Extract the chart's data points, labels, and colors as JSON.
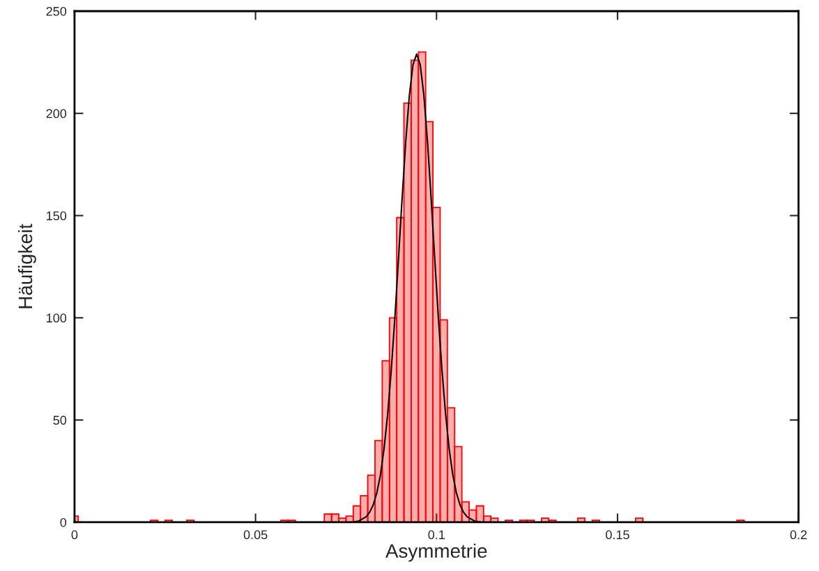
{
  "chart_data": {
    "type": "histogram",
    "xlabel": "Asymmetrie",
    "ylabel": "Häufigkeit",
    "bins": [
      0,
      0.001,
      0.003,
      0.005,
      0.007,
      0.009,
      0.011,
      0.013,
      0.015,
      0.017,
      0.019,
      0.021,
      0.023,
      0.025,
      0.027,
      0.029,
      0.031,
      0.033,
      0.035,
      0.037,
      0.039,
      0.041,
      0.043,
      0.045,
      0.047,
      0.049,
      0.051,
      0.053,
      0.055,
      0.057,
      0.059,
      0.061,
      0.063,
      0.065,
      0.067,
      0.069,
      0.071,
      0.073,
      0.075,
      0.077,
      0.079,
      0.081,
      0.083,
      0.085,
      0.087,
      0.089,
      0.091,
      0.093,
      0.095,
      0.097,
      0.099,
      0.101,
      0.103,
      0.105,
      0.107,
      0.109,
      0.111,
      0.113,
      0.115,
      0.117,
      0.119,
      0.121,
      0.123,
      0.125,
      0.127,
      0.129,
      0.131,
      0.133,
      0.135,
      0.137,
      0.139,
      0.141,
      0.143,
      0.145,
      0.147,
      0.149,
      0.151,
      0.153,
      0.155,
      0.157,
      0.159,
      0.161,
      0.163,
      0.165,
      0.167,
      0.169,
      0.171,
      0.173,
      0.175,
      0.177,
      0.179,
      0.181,
      0.183,
      0.185
    ],
    "values": [
      3,
      0,
      0,
      0,
      0,
      0,
      0,
      0,
      0,
      0,
      0,
      1,
      0,
      1,
      0,
      0,
      1,
      0,
      0,
      0,
      0,
      0,
      0,
      0,
      0,
      0,
      0,
      0,
      0,
      1,
      1,
      0,
      0,
      0,
      0,
      4,
      4,
      2,
      3,
      8,
      13,
      23,
      40,
      79,
      100,
      149,
      205,
      226,
      230,
      196,
      154,
      99,
      56,
      37,
      10,
      6,
      8,
      3,
      2,
      0,
      1,
      0,
      1,
      1,
      0,
      2,
      1,
      0,
      0,
      0,
      2,
      0,
      1,
      0,
      0,
      0,
      0,
      0,
      2,
      0,
      0,
      0,
      0,
      0,
      0,
      0,
      0,
      0,
      0,
      0,
      0,
      0,
      1
    ],
    "color": "#ff0000",
    "series": [
      {
        "type": "line",
        "color": "#000000",
        "x": [
          0,
          0.0765,
          0.0785,
          0.0805,
          0.0815,
          0.0825,
          0.0835,
          0.0845,
          0.0855,
          0.0865,
          0.0875,
          0.0885,
          0.0895,
          0.0905,
          0.0915,
          0.0925,
          0.0935,
          0.0945,
          0.0955,
          0.0965,
          0.0975,
          0.0985,
          0.0995,
          0.1005,
          0.1015,
          0.1025,
          0.1035,
          0.1045,
          0.1055,
          0.1065,
          0.1075,
          0.1085,
          0.1105,
          0.1125,
          0.2
        ],
        "values": [
          0,
          0,
          0.6,
          2.6,
          4.8,
          8.4,
          14.3,
          23.1,
          35.8,
          52.8,
          74.5,
          100.3,
          129.1,
          158.7,
          186.3,
          208.9,
          223.8,
          229,
          223.8,
          208.9,
          186.3,
          158.7,
          129.1,
          100.3,
          74.5,
          52.8,
          35.8,
          23.1,
          14.3,
          8.4,
          4.8,
          2.6,
          0.6,
          0,
          0
        ]
      }
    ],
    "xlim": [
      0,
      0.2
    ],
    "ylim": [
      0,
      250
    ],
    "xticks": [
      0,
      0.05,
      0.1,
      0.15,
      0.2
    ],
    "yticks": [
      0,
      50,
      100,
      150,
      200,
      250
    ],
    "grid": false,
    "legend": false
  }
}
